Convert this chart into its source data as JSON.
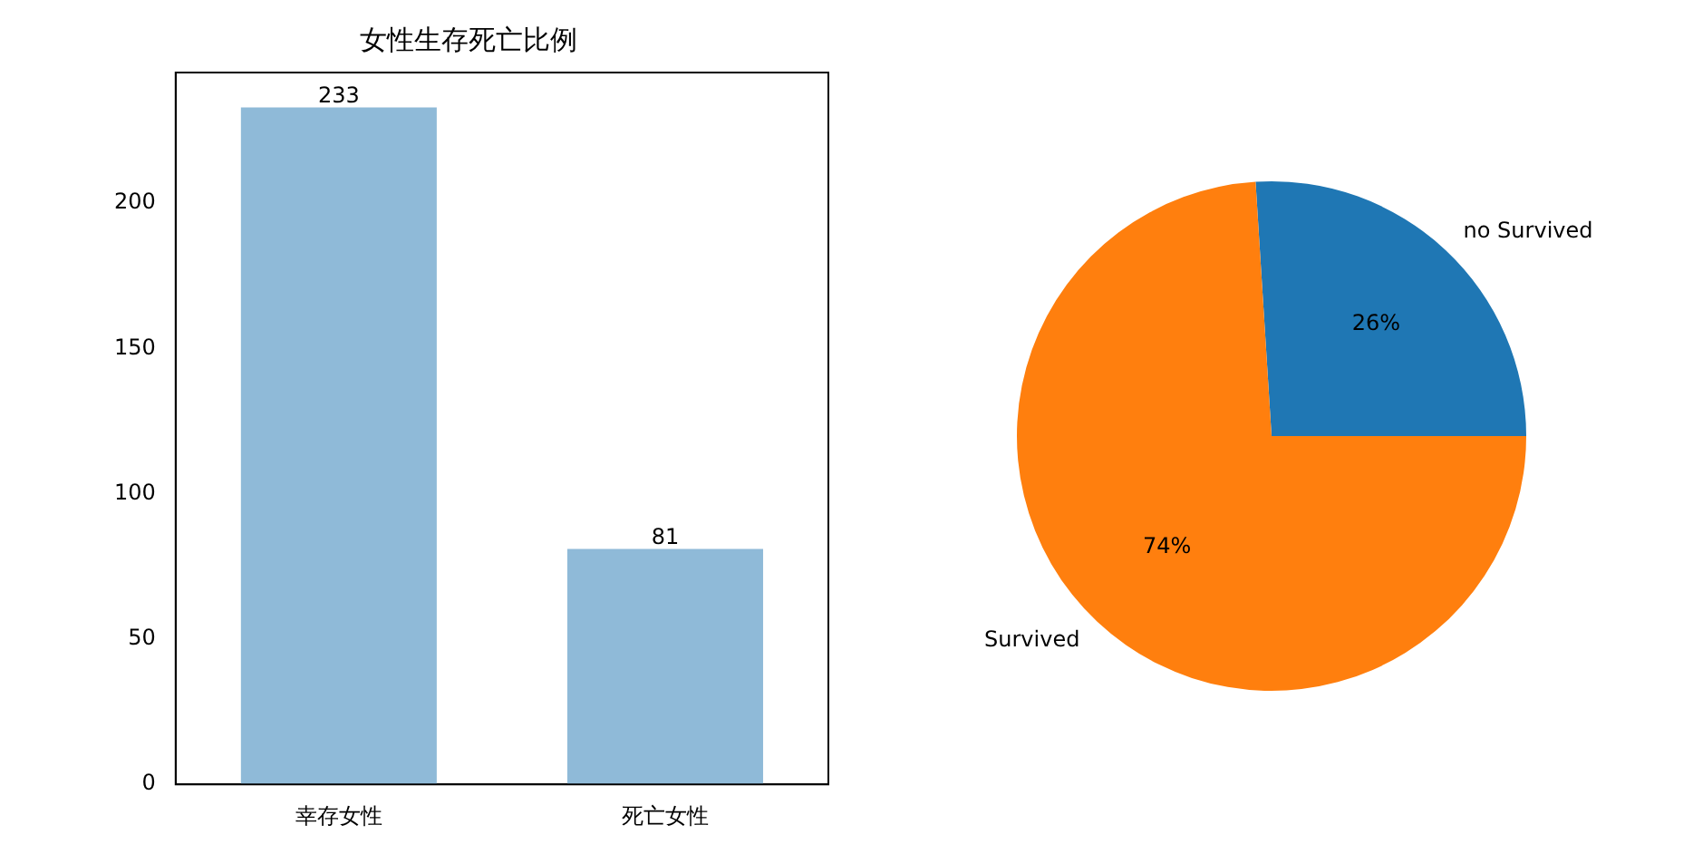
{
  "chart_data": [
    {
      "type": "bar",
      "title": "女性生存死亡比例",
      "categories": [
        "幸存女性",
        "死亡女性"
      ],
      "values": [
        233,
        81
      ],
      "color": "#8fbad8",
      "ylim": [
        0,
        245
      ],
      "yticks": [
        0,
        50,
        100,
        150,
        200
      ],
      "data_labels": true,
      "grid": false,
      "legend": false
    },
    {
      "type": "pie",
      "categories": [
        "no Survived",
        "Survived"
      ],
      "values": [
        26,
        74
      ],
      "colors": [
        "#1f77b4",
        "#ff7f0e"
      ],
      "value_labels": [
        "26%",
        "74%"
      ],
      "legend": false
    }
  ]
}
